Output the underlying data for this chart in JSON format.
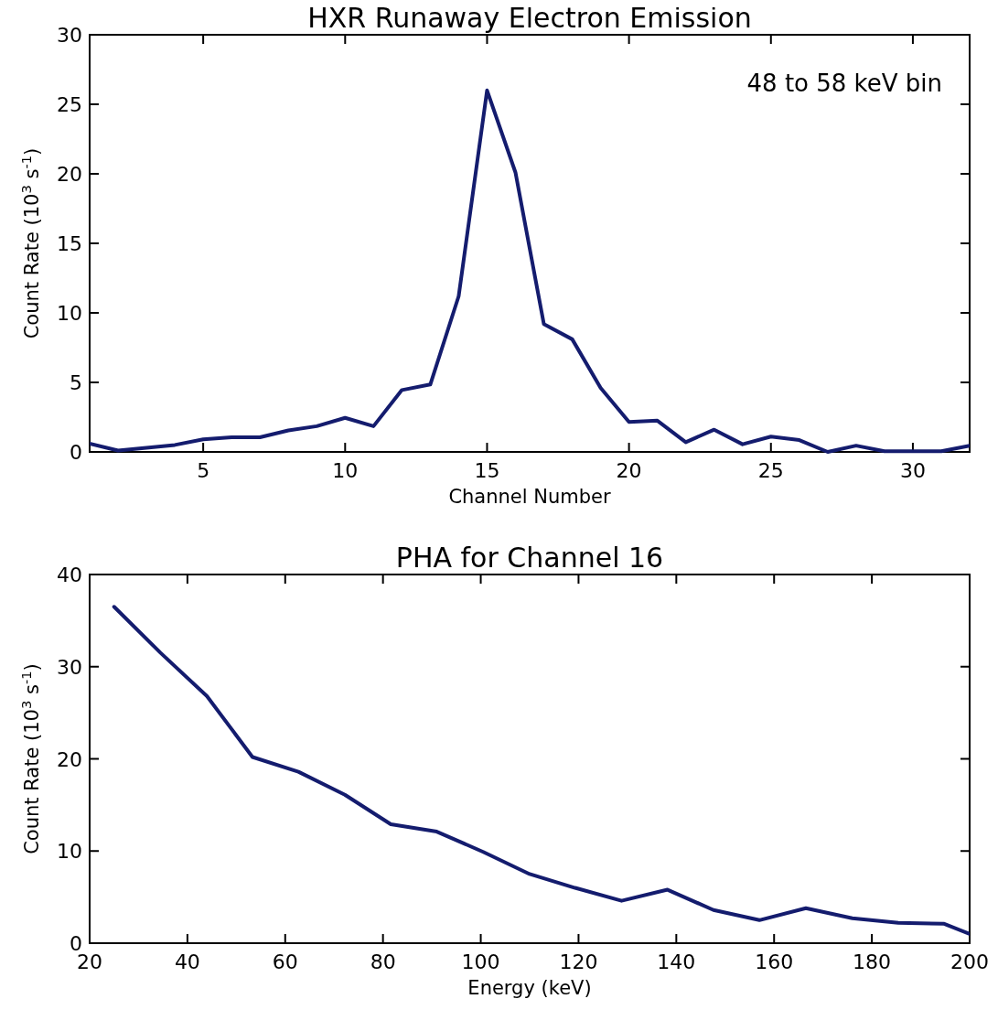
{
  "chart_data": [
    {
      "type": "line",
      "title": "HXR Runaway Electron Emission",
      "xlabel": "Channel Number",
      "ylabel": "Count Rate (10$^{3}$ s$^{-1}$)",
      "annotations": [
        "48 to 58 keV bin"
      ],
      "x": [
        1,
        2,
        3,
        4,
        5,
        6,
        7,
        8,
        9,
        10,
        11,
        12,
        13,
        14,
        15,
        16,
        17,
        18,
        19,
        20,
        21,
        22,
        23,
        24,
        25,
        26,
        27,
        28,
        29,
        30,
        31,
        32
      ],
      "series": [
        {
          "color": "#141c6e",
          "values": [
            0.6,
            0.1,
            0.3,
            0.5,
            0.9,
            1.05,
            1.05,
            1.55,
            1.85,
            2.45,
            1.85,
            4.45,
            4.85,
            11.2,
            26,
            20.1,
            9.2,
            8.1,
            4.6,
            2.15,
            2.25,
            0.7,
            1.6,
            0.55,
            1.1,
            0.85,
            0,
            0.45,
            0.05,
            0.05,
            0.05,
            0.45
          ]
        }
      ],
      "xlim": [
        1,
        32
      ],
      "xticks": [
        5,
        10,
        15,
        20,
        25,
        30
      ],
      "ylim": [
        0,
        30
      ],
      "yticks": [
        0,
        5,
        10,
        15,
        20,
        25,
        30
      ],
      "grid": false,
      "marker": "none",
      "line_style": "solid"
    },
    {
      "type": "line",
      "title": "PHA for Channel 16",
      "xlabel": "Energy (keV)",
      "ylabel": "Count Rate (10$^{3}$ s$^{-1}$)",
      "x": [
        25,
        34.5,
        44,
        53.3,
        62.7,
        72.2,
        81.6,
        91,
        100.5,
        110,
        119.3,
        128.8,
        138.2,
        147.6,
        157,
        166.5,
        176,
        185.4,
        194.8,
        200
      ],
      "series": [
        {
          "color": "#141c6e",
          "values": [
            36.5,
            31.5,
            26.8,
            20.2,
            18.6,
            16.1,
            12.9,
            12.1,
            9.9,
            7.5,
            6.0,
            4.6,
            5.8,
            3.6,
            2.5,
            3.8,
            2.7,
            2.2,
            2.1,
            1.0
          ]
        }
      ],
      "xlim": [
        20,
        200
      ],
      "xticks": [
        20,
        40,
        60,
        80,
        100,
        120,
        140,
        160,
        180,
        200
      ],
      "ylim": [
        0,
        40
      ],
      "yticks": [
        0,
        10,
        20,
        30,
        40
      ],
      "grid": false,
      "marker": "none",
      "line_style": "solid"
    }
  ]
}
